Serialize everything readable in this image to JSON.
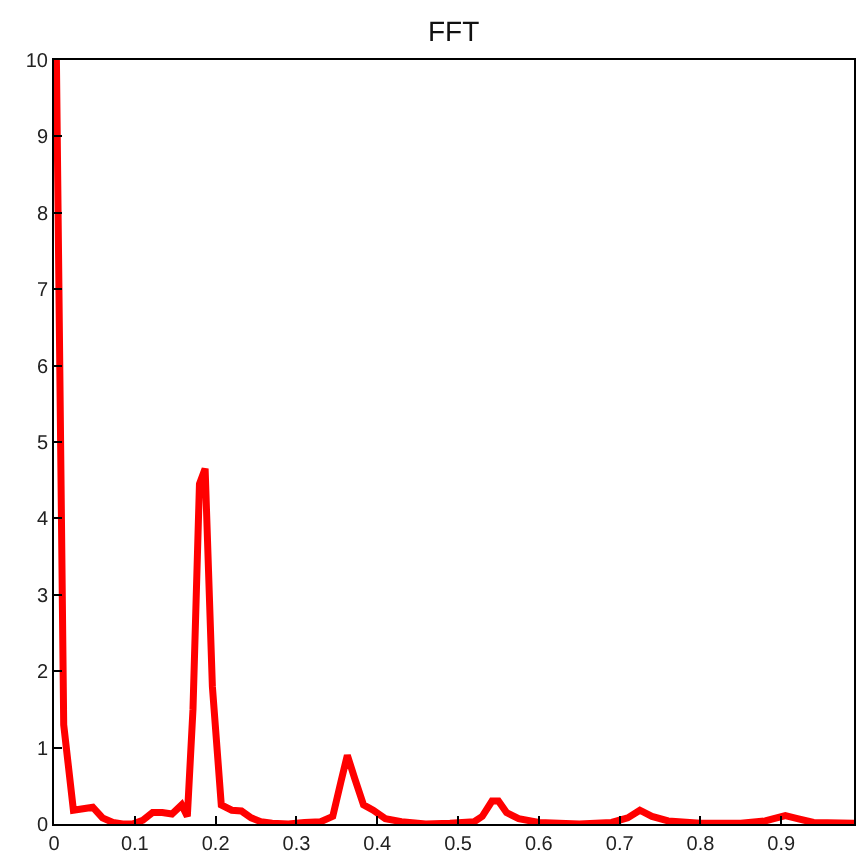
{
  "chart_data": {
    "type": "line",
    "title": "FFT",
    "x": [
      0.003,
      0.012,
      0.024,
      0.036,
      0.048,
      0.06,
      0.073,
      0.085,
      0.097,
      0.11,
      0.122,
      0.134,
      0.146,
      0.158,
      0.165,
      0.172,
      0.18,
      0.187,
      0.196,
      0.207,
      0.22,
      0.232,
      0.244,
      0.256,
      0.27,
      0.29,
      0.31,
      0.33,
      0.345,
      0.355,
      0.363,
      0.372,
      0.383,
      0.395,
      0.41,
      0.43,
      0.46,
      0.49,
      0.52,
      0.53,
      0.542,
      0.55,
      0.56,
      0.575,
      0.6,
      0.65,
      0.69,
      0.71,
      0.725,
      0.74,
      0.76,
      0.8,
      0.85,
      0.88,
      0.905,
      0.92,
      0.94,
      0.99
    ],
    "series": [
      {
        "color": "#ff0000",
        "values": [
          10,
          1.3,
          0.18,
          0.2,
          0.22,
          0.08,
          0.02,
          0,
          0,
          0.05,
          0.15,
          0.15,
          0.13,
          0.25,
          0.1,
          1.5,
          4.45,
          4.65,
          1.8,
          0.25,
          0.18,
          0.17,
          0.08,
          0.03,
          0.01,
          0,
          0.02,
          0.03,
          0.1,
          0.55,
          0.9,
          0.6,
          0.25,
          0.18,
          0.07,
          0.03,
          0,
          0.01,
          0.03,
          0.1,
          0.3,
          0.3,
          0.15,
          0.07,
          0.02,
          0,
          0.02,
          0.08,
          0.18,
          0.1,
          0.04,
          0.01,
          0.01,
          0.04,
          0.11,
          0.07,
          0.02,
          0.01
        ]
      }
    ],
    "xlim": [
      0,
      0.99
    ],
    "ylim": [
      0,
      10
    ],
    "xticks": [
      0,
      0.1,
      0.2,
      0.3,
      0.4,
      0.5,
      0.6,
      0.7,
      0.8,
      0.9
    ],
    "yticks": [
      0,
      1,
      2,
      3,
      4,
      5,
      6,
      7,
      8,
      9,
      10
    ],
    "marker": "none",
    "line_style": "solid"
  }
}
